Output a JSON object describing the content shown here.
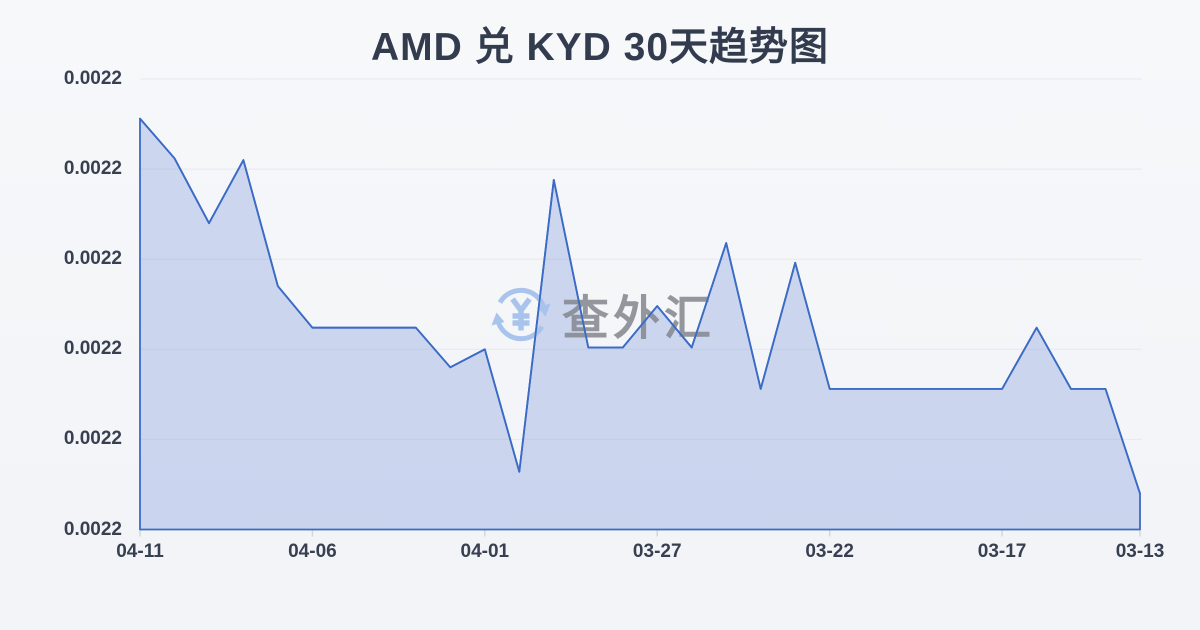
{
  "title": "AMD 兑 KYD 30天趋势图",
  "watermark": {
    "text": "查外汇",
    "icon": "yen-refresh-icon"
  },
  "colors": {
    "background": "#f3f5f8",
    "title_text": "#333c4e",
    "axis_text": "#373f50",
    "gridline": "#e6e8ec",
    "tick": "#d3d6db",
    "line": "#3b6bc5",
    "fill": "#7896dc",
    "fill_opacity": 0.33,
    "watermark_icon": "#a9c4ec",
    "watermark_text": "#83878e"
  },
  "chart_data": {
    "type": "area",
    "title": "AMD 兑 KYD 30天趋势图",
    "x": [
      "04-11",
      "04-10",
      "04-09",
      "04-08",
      "04-07",
      "04-06",
      "04-05",
      "04-04",
      "04-03",
      "04-02",
      "04-01",
      "03-31",
      "03-30",
      "03-29",
      "03-28",
      "03-27",
      "03-26",
      "03-25",
      "03-24",
      "03-23",
      "03-22",
      "03-21",
      "03-20",
      "03-19",
      "03-18",
      "03-17",
      "03-16",
      "03-15",
      "03-14",
      "03-13"
    ],
    "values": [
      0.0022178,
      0.0022156,
      0.002212,
      0.0022155,
      0.0022085,
      0.0022062,
      0.0022062,
      0.0022062,
      0.0022062,
      0.002204,
      0.002205,
      0.0021982,
      0.0022144,
      0.0022051,
      0.0022051,
      0.0022074,
      0.0022051,
      0.0022109,
      0.0022028,
      0.0022098,
      0.0022028,
      0.0022028,
      0.0022028,
      0.0022028,
      0.0022028,
      0.0022028,
      0.0022062,
      0.0022028,
      0.0022028,
      0.002197
    ],
    "xtick_labels": [
      "04-11",
      "04-06",
      "04-01",
      "03-27",
      "03-22",
      "03-17",
      "03-13"
    ],
    "xtick_indices": [
      0,
      5,
      10,
      15,
      20,
      25,
      29
    ],
    "ytick_labels": [
      "0.0022",
      "0.0022",
      "0.0022",
      "0.0022",
      "0.0022",
      "0.0022"
    ],
    "ylim": [
      0.002195,
      0.00222
    ],
    "xlabel": "",
    "ylabel": "",
    "grid": "horizontal",
    "legend": "none"
  }
}
